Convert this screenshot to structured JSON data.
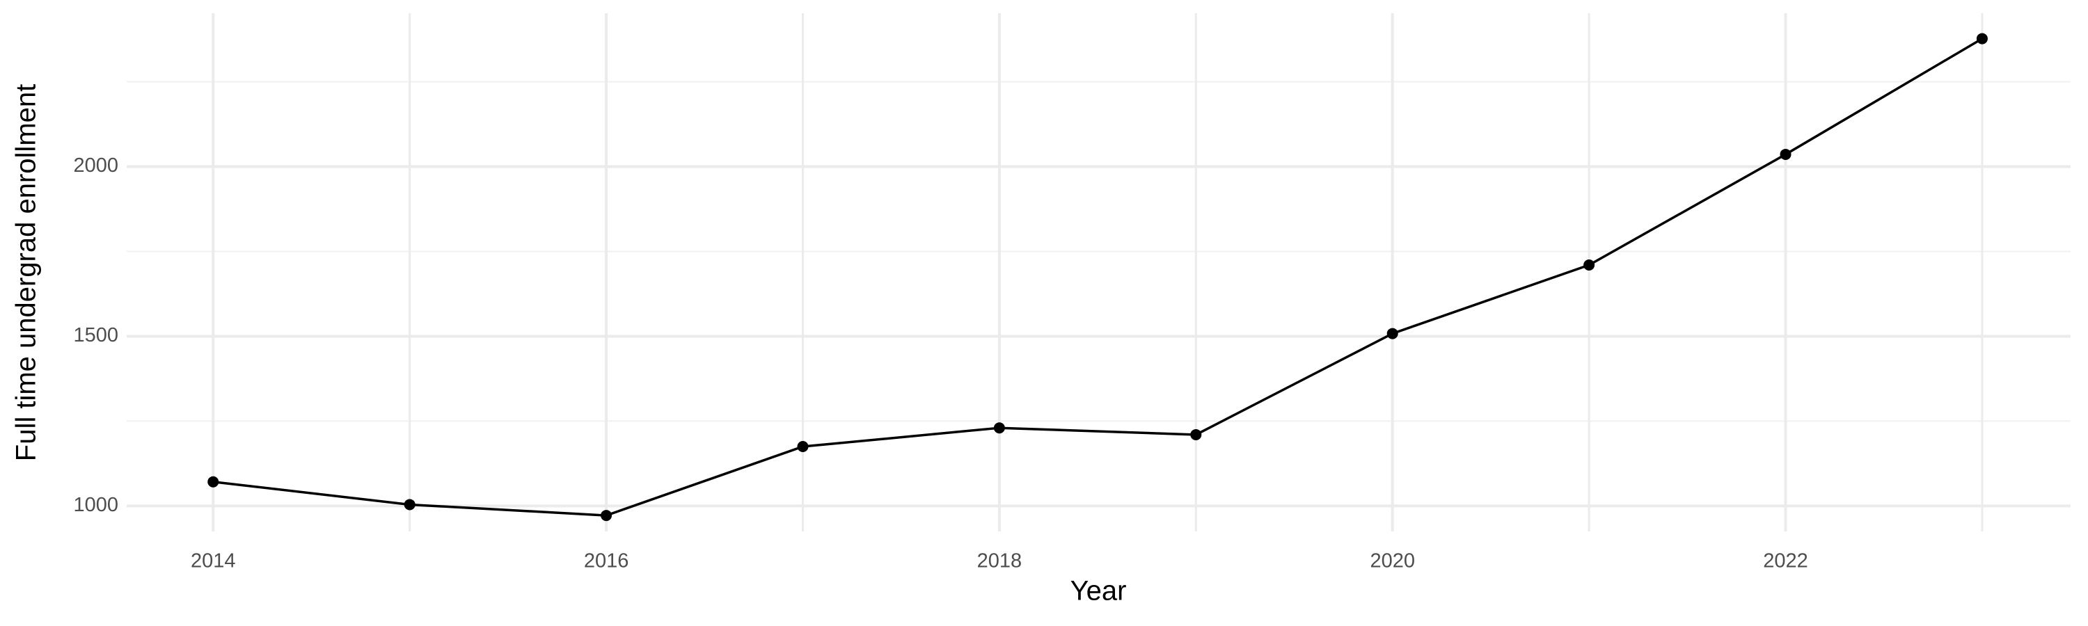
{
  "chart_data": {
    "type": "line",
    "x_label": "Year",
    "y_label": "Full time undergrad enrollment",
    "x": [
      2014,
      2015,
      2016,
      2017,
      2018,
      2019,
      2020,
      2021,
      2022,
      2023
    ],
    "series": [
      {
        "color": "#000000",
        "values": [
          1071,
          1004,
          972,
          1175,
          1230,
          1210,
          1508,
          1710,
          2036,
          2377
        ]
      }
    ],
    "xlim": [
      2013.56,
      2023.45
    ],
    "xticks": [
      2014,
      2016,
      2018,
      2020,
      2022
    ],
    "xminorticks": [
      2015,
      2017,
      2019,
      2021,
      2023
    ],
    "ylim": [
      925,
      2452
    ],
    "yticks": [
      1000,
      1500,
      2000
    ],
    "yminorticks": [
      1250,
      1750,
      2250
    ],
    "grid": true
  }
}
